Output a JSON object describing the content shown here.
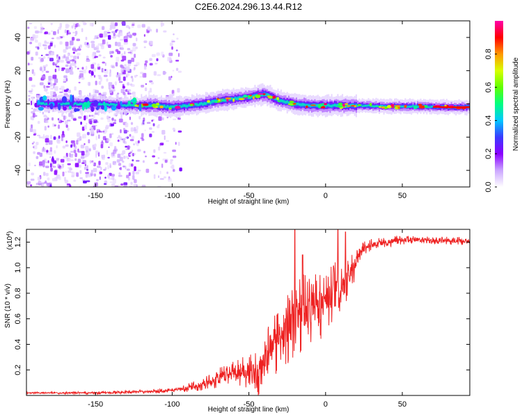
{
  "title": "C2E6.2024.296.13.44.R12",
  "chart_data": [
    {
      "type": "heatmap",
      "name": "spectrogram",
      "xlabel": "Height of straight line (km)",
      "ylabel": "Frequency (Hz)",
      "xlim": [
        -195,
        94
      ],
      "ylim": [
        -50,
        50
      ],
      "xticks": [
        -150,
        -100,
        -50,
        0,
        50
      ],
      "xtick_labels": [
        "-150",
        "-100",
        "-50",
        "0",
        "50"
      ],
      "yticks": [
        -40,
        -20,
        0,
        20,
        40
      ],
      "ytick_labels": [
        "-40",
        "-20",
        "0",
        "20",
        "40"
      ],
      "signal_track": {
        "x": [
          -190,
          -170,
          -150,
          -130,
          -120,
          -110,
          -100,
          -90,
          -80,
          -70,
          -60,
          -50,
          -45,
          -40,
          -35,
          -30,
          -20,
          -10,
          0,
          10,
          20,
          40,
          60,
          80,
          94
        ],
        "y": [
          0,
          0,
          0,
          -1,
          -1,
          -1,
          -2,
          -1,
          0,
          2,
          3,
          4,
          5,
          6,
          4,
          2,
          0,
          -1,
          -1,
          -1,
          -1,
          -1.5,
          -1.5,
          -2,
          -2
        ]
      },
      "noise_region_x": [
        -195,
        -95
      ],
      "colorbar": {
        "label": "Normalized spectral amplitude",
        "range": [
          0,
          1
        ],
        "ticks": [
          0.0,
          0.2,
          0.4,
          0.6,
          0.8
        ],
        "tick_labels": [
          "0.0",
          "0.2",
          "0.4",
          "0.6",
          "0.8"
        ],
        "colors": [
          "#ffffff",
          "#cba6ff",
          "#8a00ff",
          "#3a3aff",
          "#00c8ff",
          "#00ff80",
          "#60ff00",
          "#d8ff00",
          "#ff9900",
          "#ff0000",
          "#ff00aa"
        ]
      }
    },
    {
      "type": "line",
      "name": "snr",
      "xlabel": "Height of straight line (km)",
      "ylabel": "SNR (10 * v/v)",
      "y_multiplier_label": "(x10",
      "y_multiplier_exp": "4",
      "y_multiplier_close": ")",
      "xlim": [
        -195,
        94
      ],
      "ylim": [
        0,
        1.3
      ],
      "xticks": [
        -150,
        -100,
        -50,
        0,
        50
      ],
      "xtick_labels": [
        "-150",
        "-100",
        "-50",
        "0",
        "50"
      ],
      "yticks": [
        0.2,
        0.4,
        0.6,
        0.8,
        1.0,
        1.2
      ],
      "ytick_labels": [
        "0.2",
        "0.4",
        "0.6",
        "0.8",
        "1.0",
        "1.2"
      ],
      "line_color": "#ee2222",
      "envelope": {
        "x": [
          -195,
          -150,
          -120,
          -100,
          -90,
          -80,
          -70,
          -60,
          -55,
          -50,
          -45,
          -40,
          -35,
          -30,
          -25,
          -20,
          -15,
          -10,
          -5,
          0,
          5,
          10,
          15,
          20,
          25,
          30,
          40,
          50,
          60,
          70,
          80,
          94
        ],
        "y": [
          0.02,
          0.02,
          0.03,
          0.04,
          0.06,
          0.09,
          0.13,
          0.18,
          0.2,
          0.19,
          0.17,
          0.28,
          0.38,
          0.45,
          0.55,
          0.6,
          0.65,
          0.66,
          0.7,
          0.74,
          0.78,
          0.82,
          0.9,
          1.05,
          1.15,
          1.18,
          1.2,
          1.22,
          1.22,
          1.21,
          1.21,
          1.21
        ]
      },
      "noise_amplitude": {
        "x": [
          -195,
          -100,
          -80,
          -60,
          -50,
          -40,
          -30,
          -20,
          -10,
          0,
          10,
          20,
          30,
          60,
          94
        ],
        "y": [
          0.005,
          0.01,
          0.03,
          0.07,
          0.09,
          0.14,
          0.18,
          0.2,
          0.2,
          0.17,
          0.15,
          0.06,
          0.03,
          0.02,
          0.02
        ]
      },
      "spikes": [
        {
          "x": -20,
          "y": 1.3
        },
        {
          "x": -15,
          "y": 1.1
        },
        {
          "x": 8,
          "y": 1.3
        },
        {
          "x": 13,
          "y": 1.28
        }
      ]
    }
  ]
}
